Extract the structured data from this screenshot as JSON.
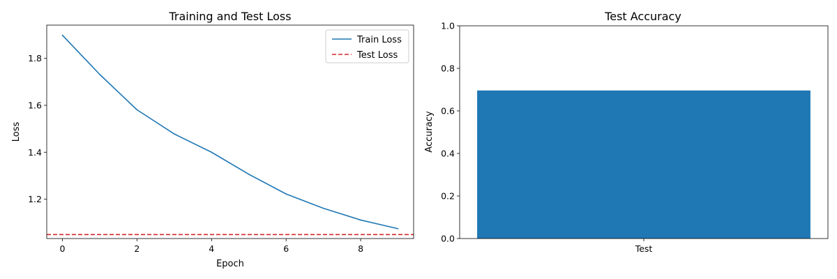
{
  "chart_data": [
    {
      "type": "line",
      "title": "Training and Test Loss",
      "xlabel": "Epoch",
      "ylabel": "Loss",
      "xlim": [
        -0.42,
        9.42
      ],
      "ylim": [
        1.032,
        1.942
      ],
      "xticks": [
        0,
        2,
        4,
        6,
        8
      ],
      "xtick_labels": [
        "0",
        "2",
        "4",
        "6",
        "8"
      ],
      "yticks": [
        1.2,
        1.4,
        1.6,
        1.8
      ],
      "ytick_labels": [
        "1.2",
        "1.4",
        "1.6",
        "1.8"
      ],
      "grid": false,
      "legend": "top-right",
      "series": [
        {
          "name": "Train Loss",
          "color": "#1f77b4",
          "style": "solid",
          "x": [
            0,
            1,
            2,
            3,
            4,
            5,
            6,
            7,
            8,
            9
          ],
          "values": [
            1.899,
            1.732,
            1.581,
            1.478,
            1.4,
            1.306,
            1.222,
            1.161,
            1.111,
            1.074
          ]
        },
        {
          "name": "Test Loss",
          "color": "#d62728",
          "style": "dashed",
          "hline": 1.049
        }
      ]
    },
    {
      "type": "bar",
      "title": "Test Accuracy",
      "xlabel": "",
      "ylabel": "Accuracy",
      "ylim": [
        0.0,
        1.0
      ],
      "yticks": [
        0.0,
        0.2,
        0.4,
        0.6,
        0.8,
        1.0
      ],
      "ytick_labels": [
        "0.0",
        "0.2",
        "0.4",
        "0.6",
        "0.8",
        "1.0"
      ],
      "grid": false,
      "categories": [
        "Test"
      ],
      "values": [
        0.696
      ],
      "color": "#1f77b4"
    }
  ]
}
